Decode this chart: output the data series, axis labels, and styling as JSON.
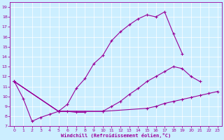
{
  "xlabel": "Windchill (Refroidissement éolien,°C)",
  "background_color": "#cceeff",
  "line_color": "#990099",
  "xlim": [
    -0.5,
    23.5
  ],
  "ylim": [
    7,
    19.5
  ],
  "yticks": [
    7,
    8,
    9,
    10,
    11,
    12,
    13,
    14,
    15,
    16,
    17,
    18,
    19
  ],
  "xticks": [
    0,
    1,
    2,
    3,
    4,
    5,
    6,
    7,
    8,
    9,
    10,
    11,
    12,
    13,
    14,
    15,
    16,
    17,
    18,
    19,
    20,
    21,
    22,
    23
  ],
  "series": [
    {
      "x": [
        0,
        1,
        2,
        3,
        4,
        5,
        6,
        7,
        8
      ],
      "y": [
        11.5,
        9.8,
        7.5,
        7.9,
        8.2,
        8.5,
        8.5,
        8.4,
        8.4
      ]
    },
    {
      "x": [
        0,
        5,
        6,
        7,
        8,
        9,
        10,
        11,
        12,
        13,
        14,
        15,
        16,
        17,
        18,
        19
      ],
      "y": [
        11.5,
        8.5,
        9.2,
        10.8,
        11.8,
        13.3,
        14.1,
        15.6,
        16.5,
        17.2,
        17.8,
        18.2,
        18.0,
        18.5,
        16.3,
        14.3
      ]
    },
    {
      "x": [
        0,
        5,
        10,
        11,
        12,
        13,
        14,
        15,
        16,
        17,
        18,
        19,
        20,
        21
      ],
      "y": [
        11.5,
        8.5,
        8.5,
        9.0,
        9.5,
        10.2,
        10.8,
        11.5,
        12.0,
        12.5,
        13.0,
        12.8,
        12.0,
        11.5
      ]
    },
    {
      "x": [
        0,
        5,
        10,
        15,
        16,
        17,
        18,
        19,
        20,
        21,
        22,
        23
      ],
      "y": [
        11.5,
        8.5,
        8.5,
        8.8,
        9.0,
        9.3,
        9.5,
        9.7,
        9.9,
        10.1,
        10.3,
        10.5
      ]
    }
  ]
}
